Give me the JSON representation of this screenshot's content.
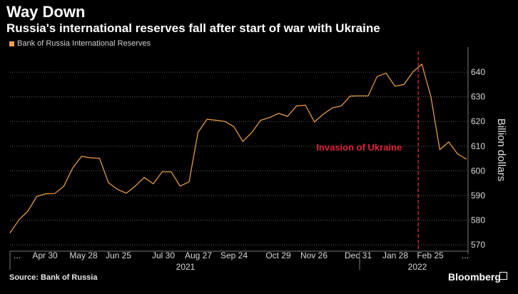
{
  "title": "Way Down",
  "subtitle": "Russia's international reserves fall after start of war with Ukraine",
  "source": "Source: Bank of Russia",
  "brand": "Bloomberg",
  "colors": {
    "series": "#f0a24a",
    "annotation": "#e0243a",
    "grid": "#5a5a5a",
    "background": "#000000"
  },
  "chart_data": {
    "type": "line",
    "title": "Way Down",
    "subtitle": "Russia's international reserves fall after start of war with Ukraine",
    "ylabel": "Billion dollars",
    "ylim": [
      568,
      649
    ],
    "yticks": [
      570,
      580,
      590,
      600,
      610,
      620,
      630,
      640
    ],
    "grid": "dotted horizontal",
    "legend_placement": "top-left",
    "x_tick_labels": [
      "...",
      "Apr 30",
      "May 28",
      "Jun 25",
      "Jul 30",
      "Aug 27",
      "Sep 24",
      "Oct 29",
      "Nov 26",
      "Dec 31",
      "Jan 28",
      "Feb 25",
      "..."
    ],
    "x_year_labels": [
      "2021",
      "2022"
    ],
    "annotation": {
      "text": "Invasion of Ukraine",
      "x_index": 44
    },
    "series": [
      {
        "name": "Bank of Russia International Reserves",
        "values": [
          574.8,
          580.1,
          583.7,
          589.6,
          590.7,
          590.8,
          593.7,
          601.1,
          605.9,
          605.3,
          605.1,
          595.2,
          592.5,
          590.9,
          593.9,
          597.3,
          594.7,
          599.6,
          599.6,
          593.8,
          595.5,
          615.6,
          620.9,
          620.5,
          620.0,
          617.9,
          611.9,
          615.5,
          620.5,
          621.6,
          623.3,
          622.1,
          626.3,
          626.6,
          619.8,
          623.0,
          625.5,
          626.3,
          630.3,
          630.4,
          630.4,
          638.2,
          639.6,
          634.3,
          635.0,
          640.1,
          643.2,
          630.2,
          608.6,
          611.7,
          606.8,
          604.7
        ]
      }
    ]
  }
}
